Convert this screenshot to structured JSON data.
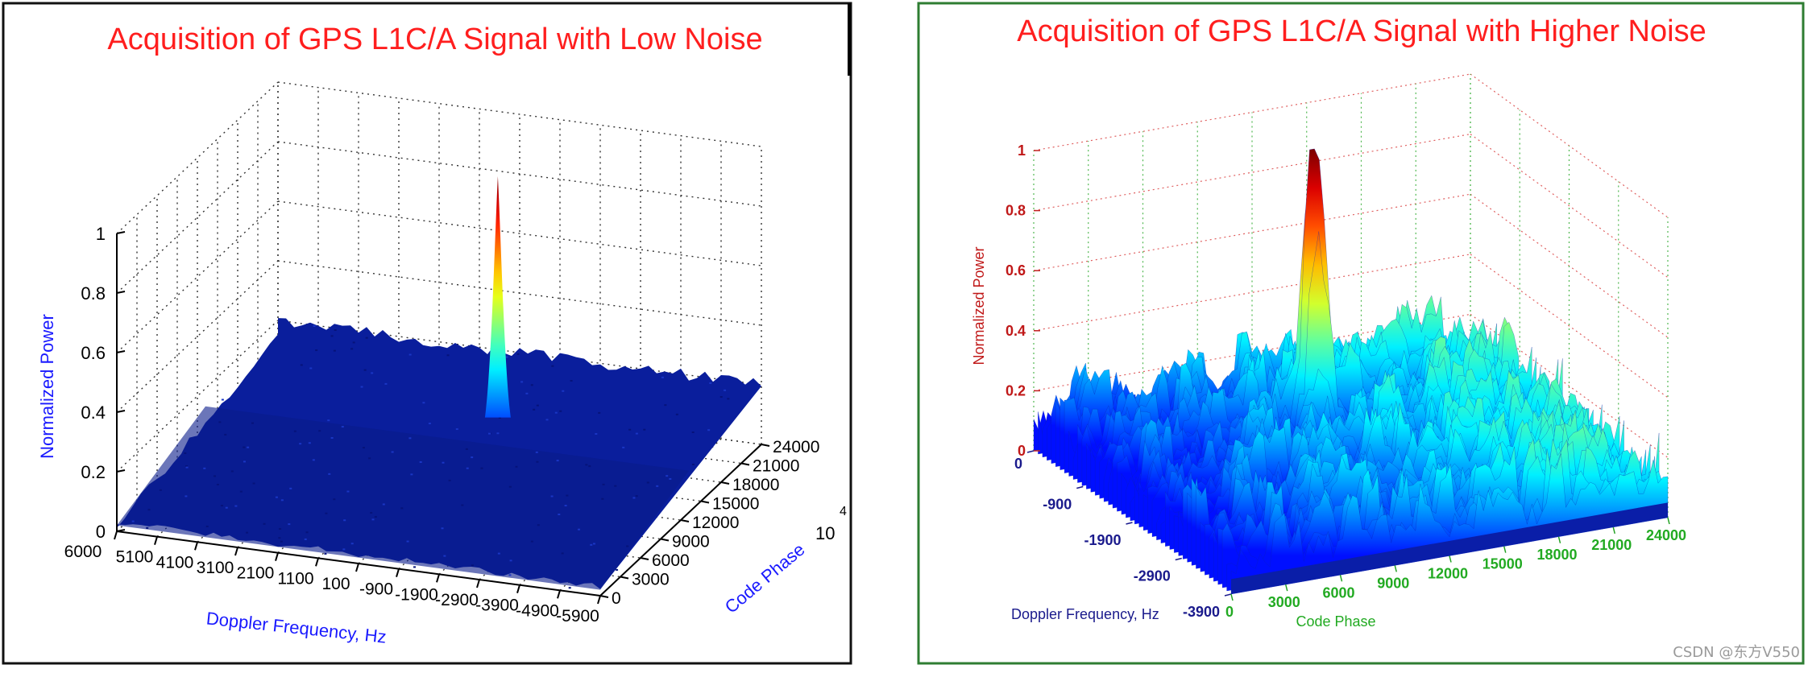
{
  "watermark": "CSDN @东方V550",
  "chart_data": [
    {
      "type": "surface",
      "title": "Acquisition of GPS L1C/A Signal with Low Noise",
      "xlabel": "Doppler Frequency, Hz",
      "ylabel": "Code Phase",
      "zlabel": "Normalized Power",
      "x_exponent_label": "4",
      "x_exponent_unit": "10",
      "z_ticks": [
        "0",
        "0.2",
        "0.4",
        "0.6",
        "0.8",
        "1"
      ],
      "doppler_ticks": [
        "6000",
        "5100",
        "4100",
        "3100",
        "2100",
        "1100",
        "100",
        "-900",
        "-1900",
        "-2900",
        "-3900",
        "-4900",
        "-5900"
      ],
      "code_phase_ticks": [
        "0",
        "3000",
        "6000",
        "9000",
        "12000",
        "15000",
        "18000",
        "21000",
        "24000"
      ],
      "zlim": [
        0,
        1
      ],
      "noise_floor": 0.2,
      "noise_variation": 0.02,
      "peak": {
        "doppler": -900,
        "code_phase": 15000,
        "power": 1.0,
        "width": "narrow"
      },
      "colormap": "jet",
      "grid": true
    },
    {
      "type": "surface",
      "title": "Acquisition of GPS L1C/A Signal with Higher Noise",
      "xlabel": "Doppler Frequency, Hz",
      "ylabel": "Code Phase",
      "zlabel": "Normalized Power",
      "z_ticks": [
        "0",
        "0.2",
        "0.4",
        "0.6",
        "0.8",
        "1"
      ],
      "doppler_ticks": [
        "0",
        "-900",
        "-1900",
        "-2900",
        "-3900"
      ],
      "code_phase_ticks": [
        "0",
        "3000",
        "6000",
        "9000",
        "12000",
        "15000",
        "18000",
        "21000",
        "24000"
      ],
      "zlim": [
        0,
        1
      ],
      "noise_floor": 0.25,
      "noise_variation": 0.2,
      "peak": {
        "doppler": -900,
        "code_phase": 12000,
        "power": 1.0,
        "width": "wide"
      },
      "colormap": "jet",
      "grid": true
    }
  ]
}
